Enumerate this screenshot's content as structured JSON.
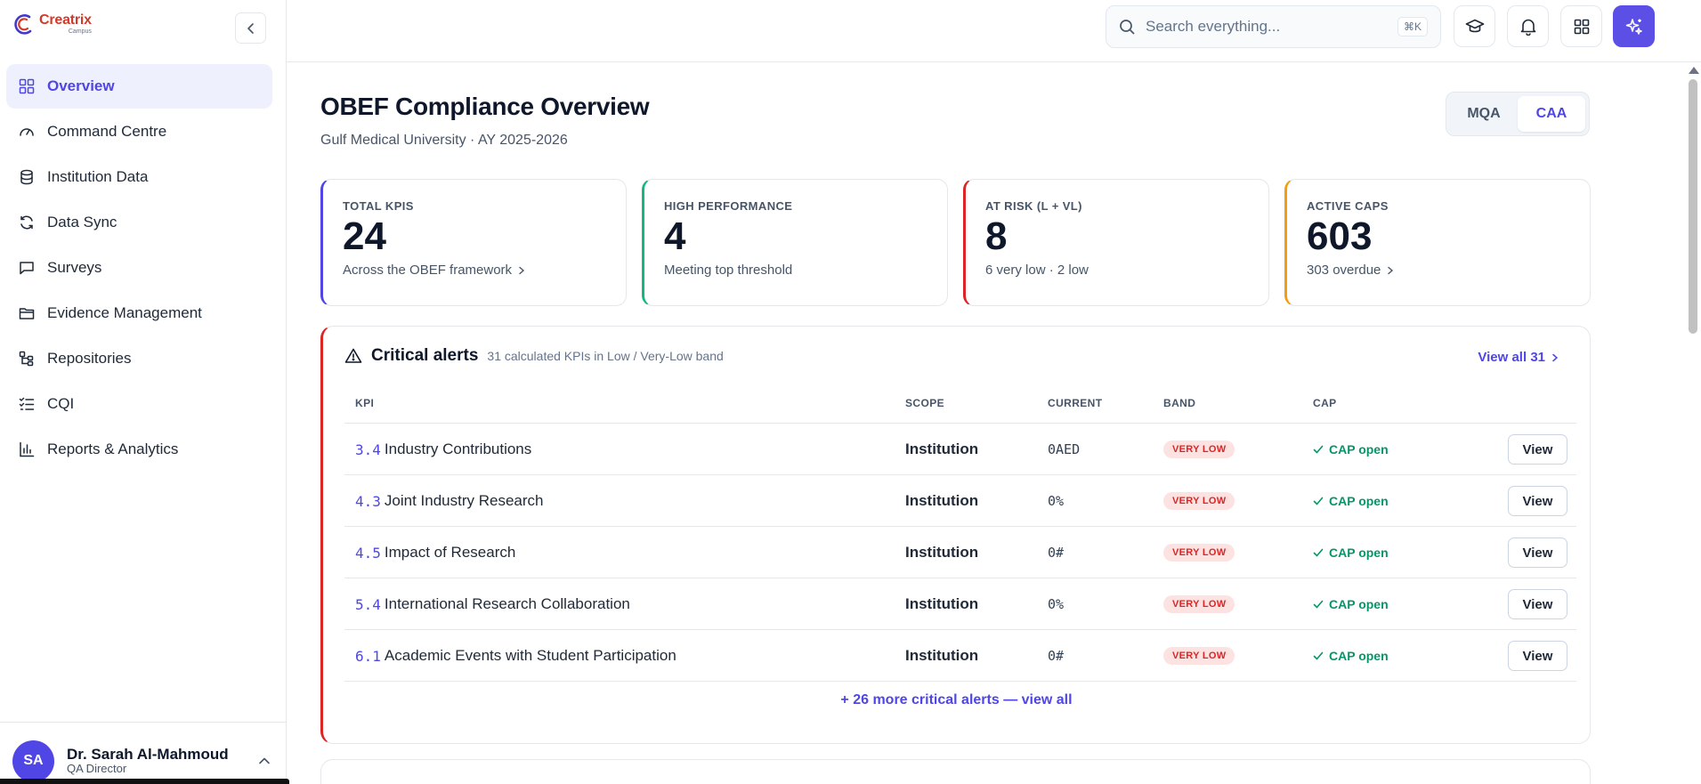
{
  "brand": {
    "name": "Creatrix",
    "sub": "Campus"
  },
  "sidebar": {
    "items": [
      {
        "label": "Overview",
        "icon": "grid-icon",
        "active": true
      },
      {
        "label": "Command Centre",
        "icon": "gauge-icon"
      },
      {
        "label": "Institution Data",
        "icon": "database-icon"
      },
      {
        "label": "Data Sync",
        "icon": "refresh-icon"
      },
      {
        "label": "Surveys",
        "icon": "chat-icon"
      },
      {
        "label": "Evidence Management",
        "icon": "folder-icon"
      },
      {
        "label": "Repositories",
        "icon": "tree-icon"
      },
      {
        "label": "CQI",
        "icon": "checklist-icon"
      },
      {
        "label": "Reports & Analytics",
        "icon": "bar-chart-icon"
      }
    ],
    "user": {
      "initials": "SA",
      "name": "Dr. Sarah Al-Mahmoud",
      "role": "QA Director"
    }
  },
  "topbar": {
    "search_placeholder": "Search everything...",
    "shortcut": "⌘K"
  },
  "header": {
    "title": "OBEF Compliance Overview",
    "subtitle": "Gulf Medical University · AY 2025-2026",
    "toggle": [
      {
        "label": "MQA",
        "active": false
      },
      {
        "label": "CAA",
        "active": true
      }
    ]
  },
  "stats": [
    {
      "label": "TOTAL KPIS",
      "value": "24",
      "sub": "Across the OBEF framework",
      "chevron": true,
      "accent": "#4f46e5"
    },
    {
      "label": "HIGH PERFORMANCE",
      "value": "4",
      "sub": "Meeting top threshold",
      "chevron": false,
      "accent": "#10b981"
    },
    {
      "label": "AT RISK (L + VL)",
      "value": "8",
      "sub": "6 very low · 2 low",
      "chevron": false,
      "accent": "#dc2626"
    },
    {
      "label": "ACTIVE CAPS",
      "value": "603",
      "sub": "303 overdue",
      "chevron": true,
      "accent": "#f59e0b"
    }
  ],
  "alerts": {
    "title": "Critical alerts",
    "meta": "31 calculated KPIs in Low / Very-Low band",
    "view_all": "View all 31",
    "columns": {
      "kpi": "KPI",
      "scope": "SCOPE",
      "current": "CURRENT",
      "band": "BAND",
      "cap": "CAP"
    },
    "rows": [
      {
        "code": "3.4",
        "name": "Industry Contributions",
        "scope": "Institution",
        "current": "0AED",
        "band": "VERY LOW",
        "cap": "CAP open",
        "action": "View"
      },
      {
        "code": "4.3",
        "name": "Joint Industry Research",
        "scope": "Institution",
        "current": "0%",
        "band": "VERY LOW",
        "cap": "CAP open",
        "action": "View"
      },
      {
        "code": "4.5",
        "name": "Impact of Research",
        "scope": "Institution",
        "current": "0#",
        "band": "VERY LOW",
        "cap": "CAP open",
        "action": "View"
      },
      {
        "code": "5.4",
        "name": "International Research Collaboration",
        "scope": "Institution",
        "current": "0%",
        "band": "VERY LOW",
        "cap": "CAP open",
        "action": "View"
      },
      {
        "code": "6.1",
        "name": "Academic Events with Student Participation",
        "scope": "Institution",
        "current": "0#",
        "band": "VERY LOW",
        "cap": "CAP open",
        "action": "View"
      }
    ],
    "more": "+ 26 more critical alerts — view all"
  }
}
